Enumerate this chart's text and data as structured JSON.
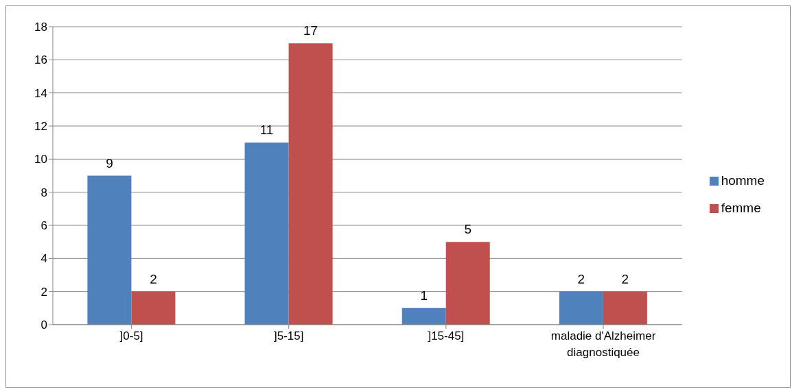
{
  "chart_data": {
    "type": "bar",
    "categories": [
      "]0-5]",
      "]5-15]",
      "]15-45]",
      "maladie d'Alzheimer diagnostiquée"
    ],
    "series": [
      {
        "name": "homme",
        "color": "#4f81bd",
        "values": [
          9,
          11,
          1,
          2
        ]
      },
      {
        "name": "femme",
        "color": "#c0504d",
        "values": [
          2,
          17,
          5,
          2
        ]
      }
    ],
    "ylim": [
      0,
      18
    ],
    "yticks": [
      0,
      2,
      4,
      6,
      8,
      10,
      12,
      14,
      16,
      18
    ],
    "grid": "y",
    "legend": "right",
    "data_labels": true
  }
}
